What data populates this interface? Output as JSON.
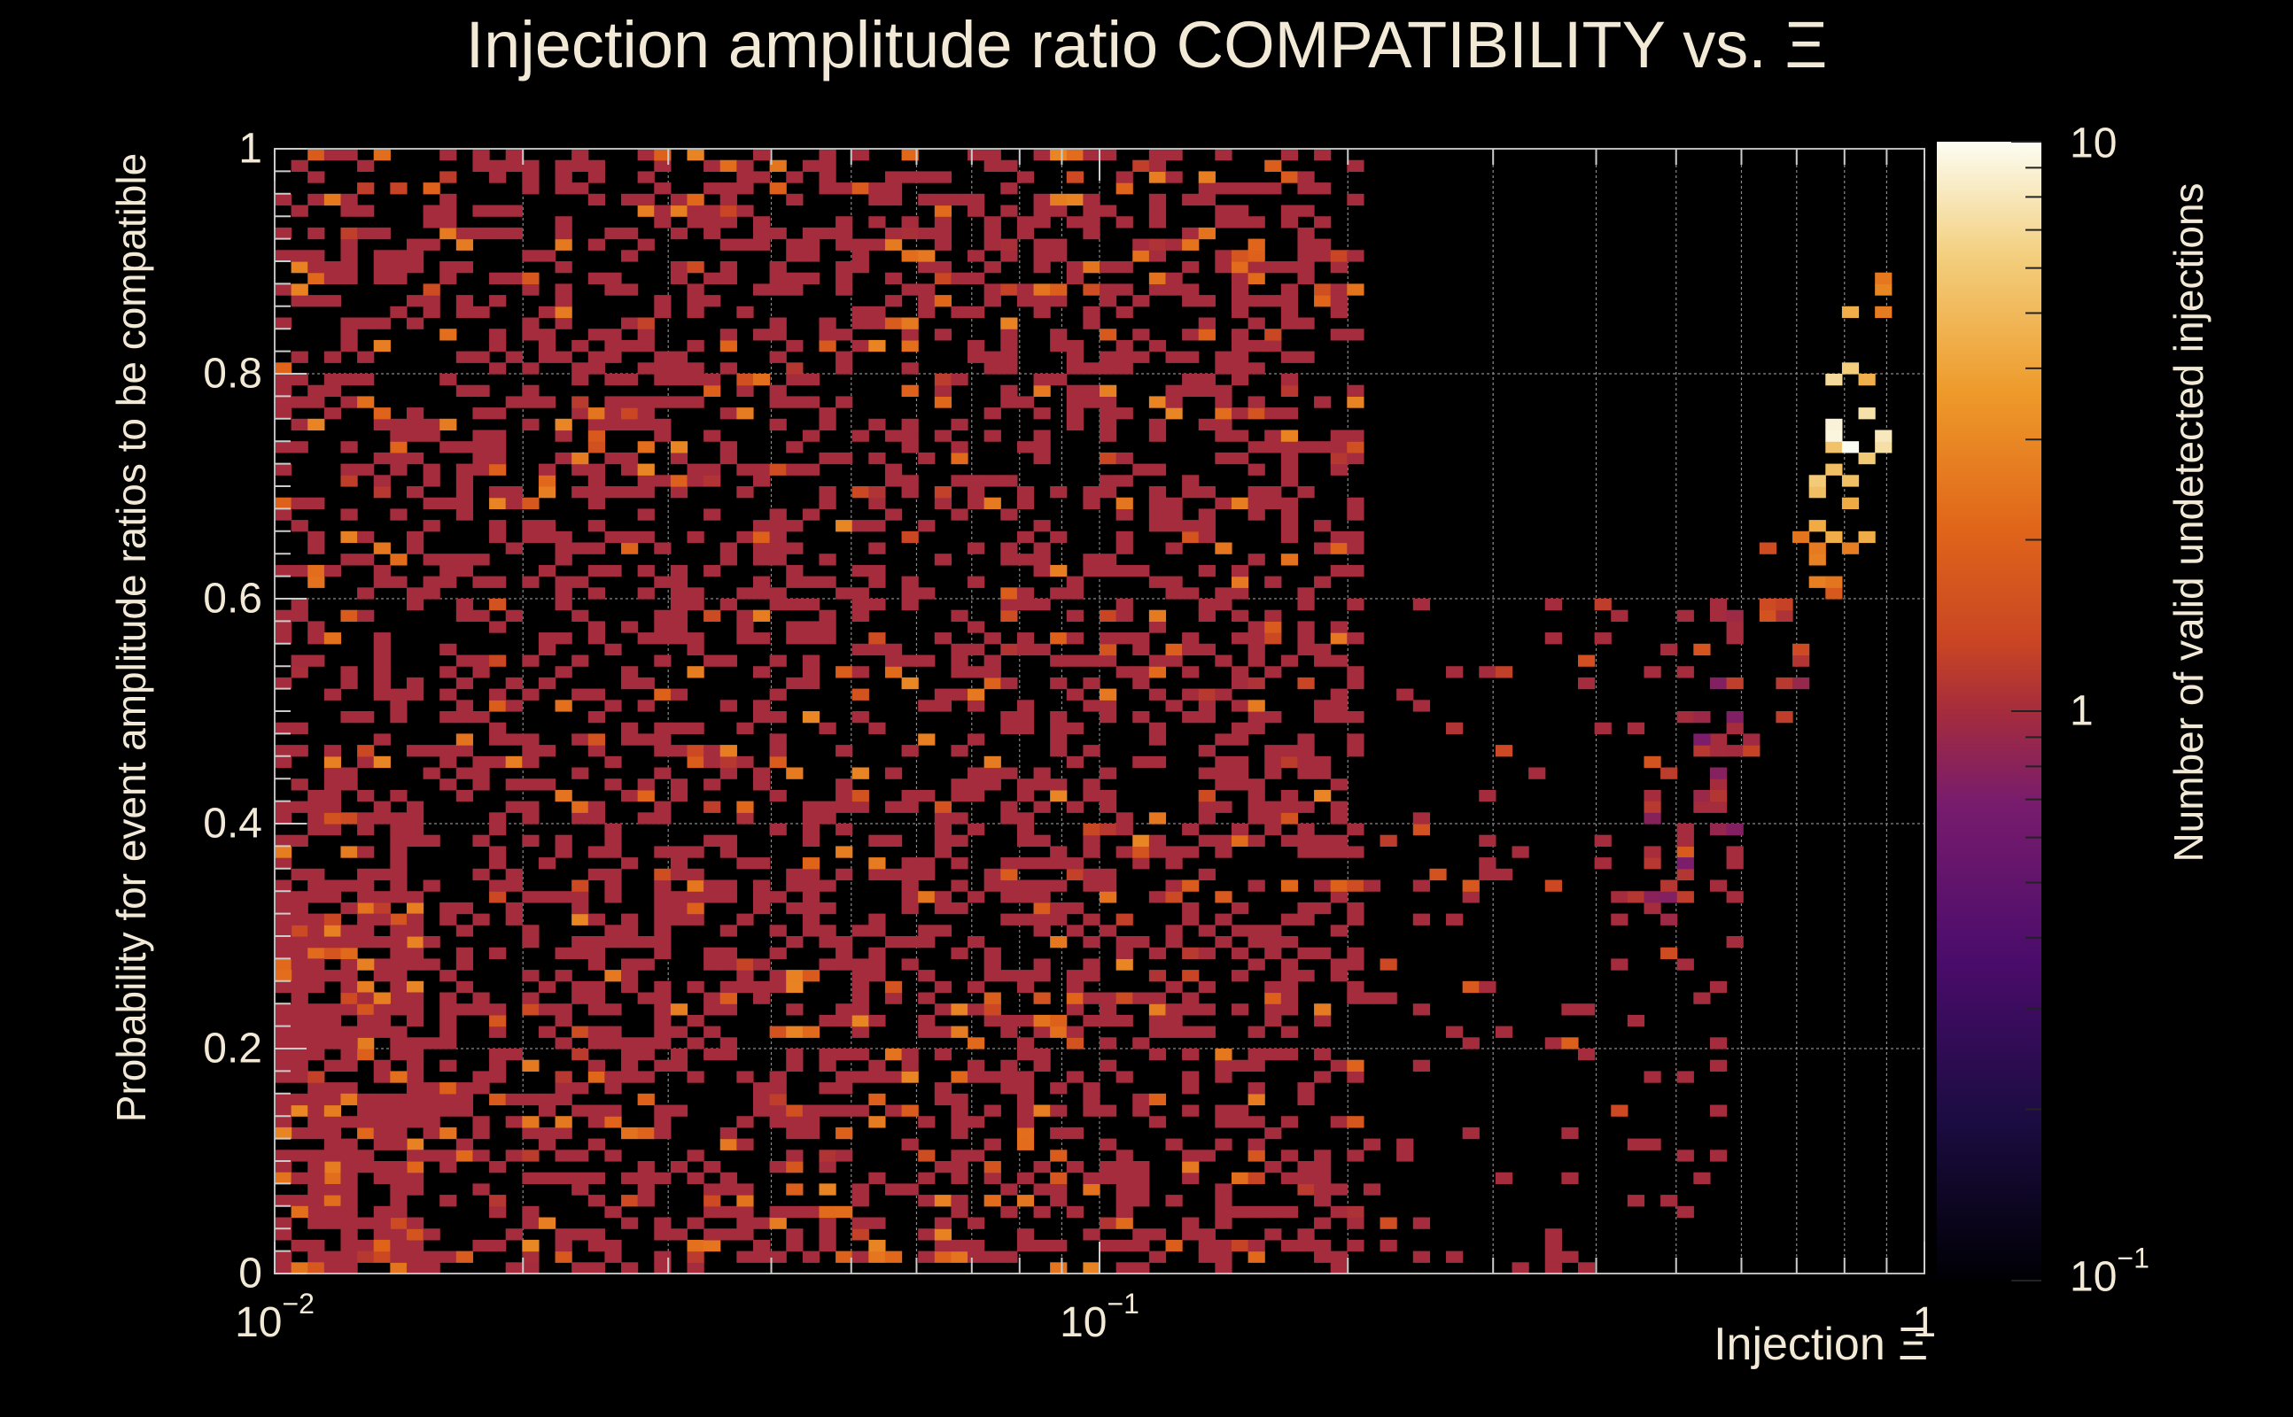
{
  "chart_data": {
    "type": "heatmap",
    "title": "Injection amplitude ratio COMPATIBILITY vs.  Ξ",
    "xlabel": "Injection Ξ",
    "ylabel": "Probability for event amplitude ratios to be compatible",
    "zlabel": "Number of valid undetected injections",
    "x_scale": "log",
    "xlim": [
      0.01,
      1
    ],
    "ylim": [
      0,
      1
    ],
    "z_scale": "log",
    "zlim": [
      0.1,
      10
    ],
    "colormap": "inferno",
    "grid": true,
    "x_ticks": [
      {
        "value": 0.01,
        "base": "10",
        "exp": "−2"
      },
      {
        "value": 0.1,
        "base": "10",
        "exp": "−1"
      },
      {
        "value": 1,
        "base": "1",
        "exp": ""
      }
    ],
    "y_ticks": [
      {
        "value": 0,
        "label": "0"
      },
      {
        "value": 0.2,
        "label": "0.2"
      },
      {
        "value": 0.4,
        "label": "0.4"
      },
      {
        "value": 0.6,
        "label": "0.6"
      },
      {
        "value": 0.8,
        "label": "0.8"
      },
      {
        "value": 1,
        "label": "1"
      }
    ],
    "z_ticks": [
      {
        "value": 0.1,
        "base": "10",
        "exp": "−1"
      },
      {
        "value": 1,
        "base": "1",
        "exp": ""
      },
      {
        "value": 10,
        "base": "10",
        "exp": ""
      }
    ],
    "bins": {
      "nx": 100,
      "ny": 100
    },
    "regions": [
      {
        "x_range": [
          0.01,
          0.2
        ],
        "y_range": [
          0.0,
          1.0
        ],
        "typical_count": 1,
        "max_count": 3,
        "fill": 0.38
      },
      {
        "x_range": [
          0.01,
          0.015
        ],
        "y_range": [
          0.0,
          0.35
        ],
        "typical_count": 1.5,
        "max_count": 3,
        "fill": 0.6
      },
      {
        "x_range": [
          0.2,
          0.6
        ],
        "y_range": [
          0.0,
          0.6
        ],
        "typical_count": 1,
        "max_count": 2,
        "fill": 0.08
      },
      {
        "x_range": [
          0.45,
          0.9
        ],
        "y_range": [
          0.3,
          0.9
        ],
        "typical_count": 2,
        "max_count": 10,
        "fill": 0.35,
        "peak": {
          "x": 0.82,
          "y": 0.75,
          "count": 10
        }
      }
    ]
  }
}
